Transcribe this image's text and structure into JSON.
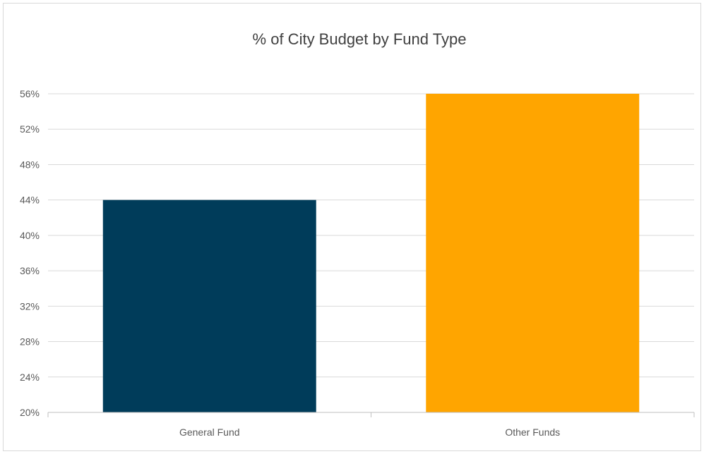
{
  "chart_data": {
    "type": "bar",
    "title": "% of City Budget by Fund Type",
    "xlabel": "",
    "ylabel": "",
    "categories": [
      "General Fund",
      "Other Funds"
    ],
    "values": [
      44,
      56
    ],
    "colors": [
      "#003c5a",
      "#ffa500"
    ],
    "ylim": [
      20,
      56
    ],
    "yticks": [
      20,
      24,
      28,
      32,
      36,
      40,
      44,
      48,
      52,
      56
    ],
    "tick_suffix": "%",
    "grid": true,
    "legend": "none"
  }
}
